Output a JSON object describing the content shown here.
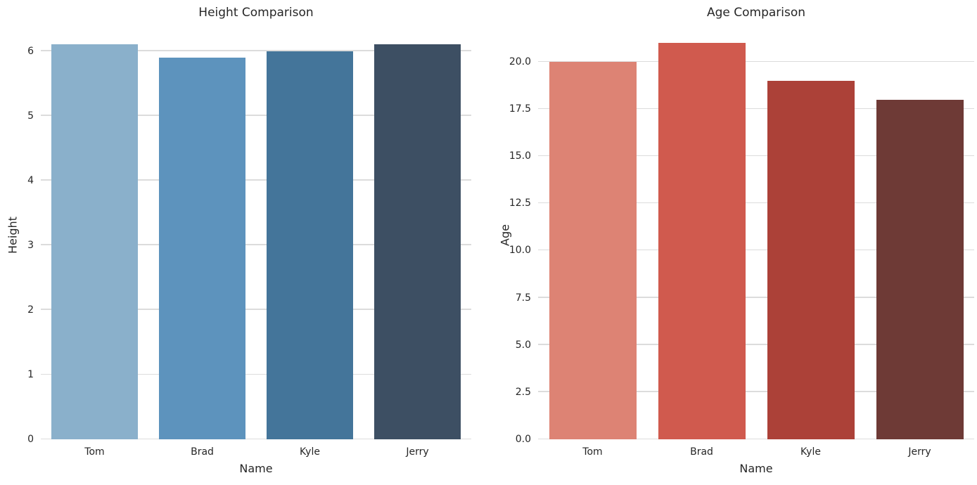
{
  "colors": {
    "background": "#ffffff",
    "grid": "#dcdcdc",
    "text": "#262626"
  },
  "chart_data": [
    {
      "type": "bar",
      "title": "Height Comparison",
      "xlabel": "Name",
      "ylabel": "Height",
      "categories": [
        "Tom",
        "Brad",
        "Kyle",
        "Jerry"
      ],
      "values": [
        6.1,
        5.9,
        6.0,
        6.1
      ],
      "bar_colors": [
        "#8ab0cb",
        "#5d93bd",
        "#44759a",
        "#3d4f63"
      ],
      "yticks": [
        0,
        1,
        2,
        3,
        4,
        5,
        6
      ],
      "ytick_labels": [
        "0",
        "1",
        "2",
        "3",
        "4",
        "5",
        "6"
      ],
      "ylim": [
        0,
        6.3
      ],
      "grid": true,
      "legend": false,
      "bar_fraction": 0.8
    },
    {
      "type": "bar",
      "title": "Age Comparison",
      "xlabel": "Name",
      "ylabel": "Age",
      "categories": [
        "Tom",
        "Brad",
        "Kyle",
        "Jerry"
      ],
      "values": [
        20,
        21,
        19,
        18
      ],
      "bar_colors": [
        "#dd8374",
        "#d05a4e",
        "#ac4138",
        "#6e3a36"
      ],
      "yticks": [
        0,
        2.5,
        5,
        7.5,
        10,
        12.5,
        15,
        17.5,
        20
      ],
      "ytick_labels": [
        "0.0",
        "2.5",
        "5.0",
        "7.5",
        "10.0",
        "12.5",
        "15.0",
        "17.5",
        "20.0"
      ],
      "ylim": [
        0,
        21.6
      ],
      "grid": true,
      "legend": false,
      "bar_fraction": 0.8
    }
  ]
}
